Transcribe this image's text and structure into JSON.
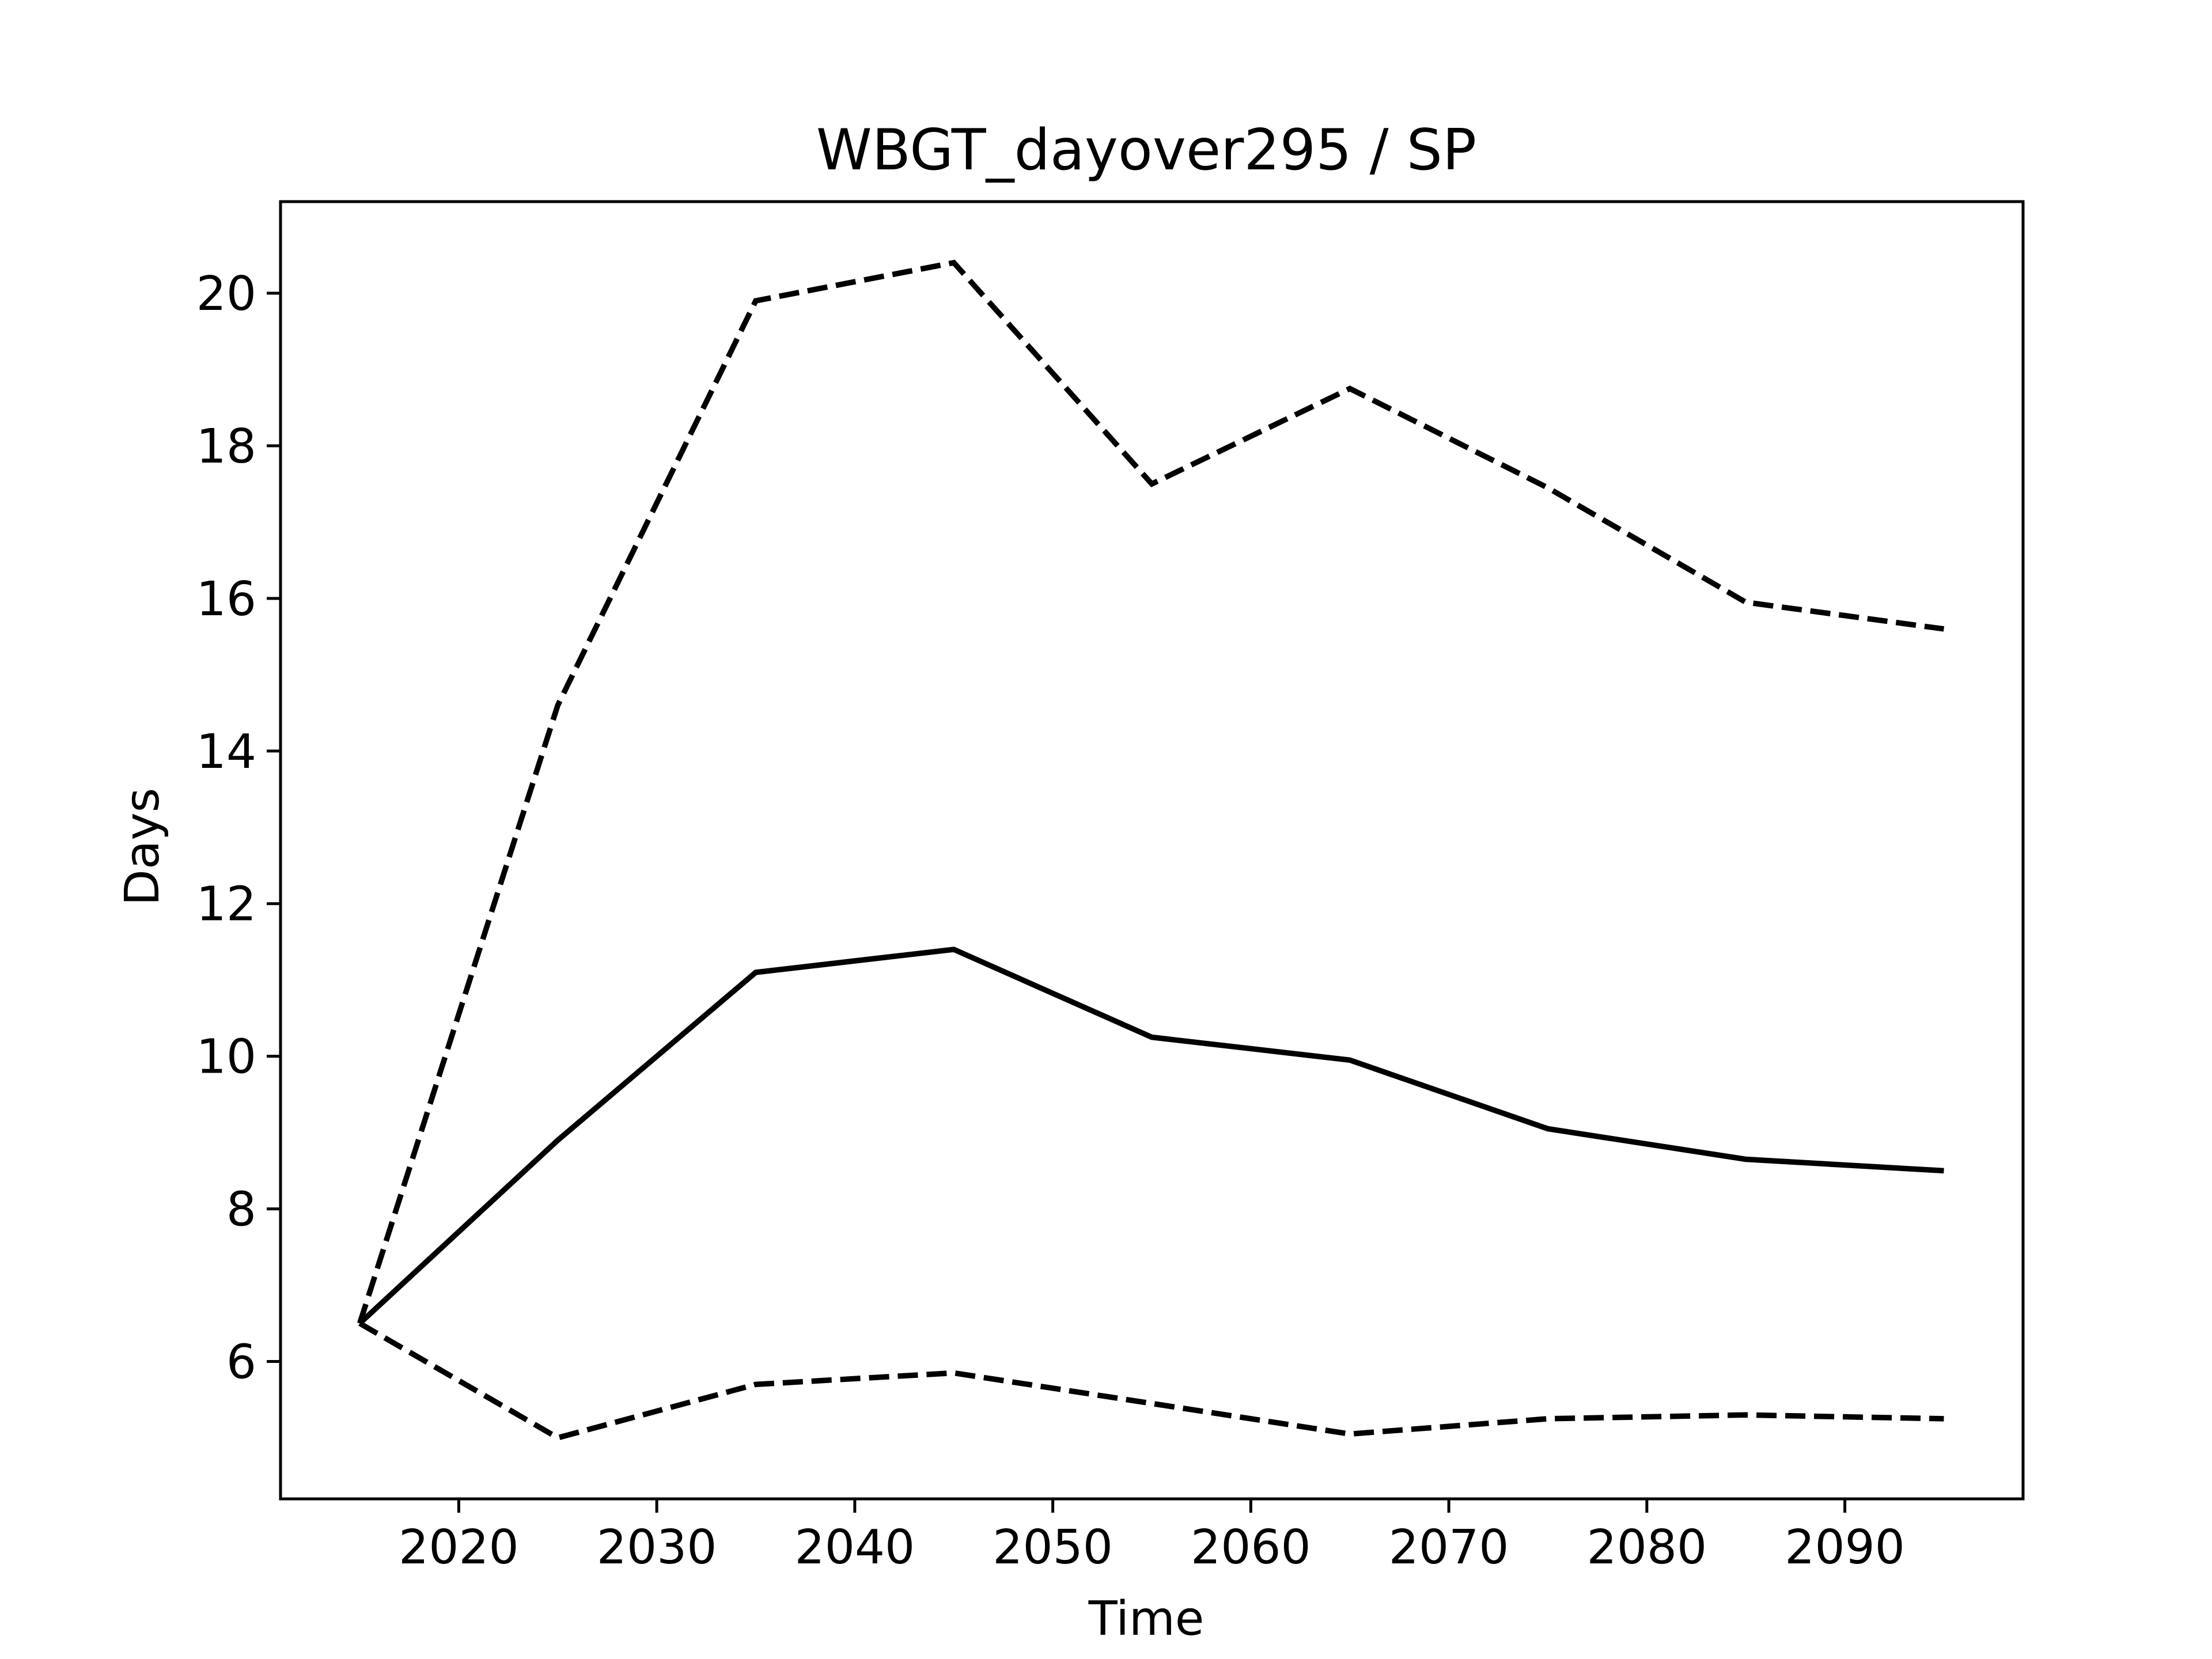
{
  "chart_data": {
    "type": "line",
    "title": "WBGT_dayover295 / SP",
    "xlabel": "Time",
    "ylabel": "Days",
    "xlim": [
      2011,
      2099
    ],
    "ylim": [
      4.2,
      21.2
    ],
    "xticks": [
      2020,
      2030,
      2040,
      2050,
      2060,
      2070,
      2080,
      2090
    ],
    "yticks": [
      6,
      8,
      10,
      12,
      14,
      16,
      18,
      20
    ],
    "grid": false,
    "legend": "none",
    "x": [
      2015,
      2025,
      2035,
      2045,
      2055,
      2065,
      2075,
      2085,
      2095
    ],
    "series": [
      {
        "style": "solid",
        "color": "#000000",
        "values": [
          6.5,
          8.9,
          11.1,
          11.4,
          10.25,
          9.95,
          9.05,
          8.65,
          8.5
        ]
      },
      {
        "style": "dashed",
        "color": "#000000",
        "values": [
          6.5,
          14.6,
          19.9,
          20.4,
          17.5,
          18.75,
          17.45,
          15.95,
          15.6
        ]
      },
      {
        "style": "dashed",
        "color": "#000000",
        "values": [
          6.5,
          5.0,
          5.7,
          5.85,
          5.45,
          5.05,
          5.25,
          5.3,
          5.25
        ]
      }
    ]
  }
}
